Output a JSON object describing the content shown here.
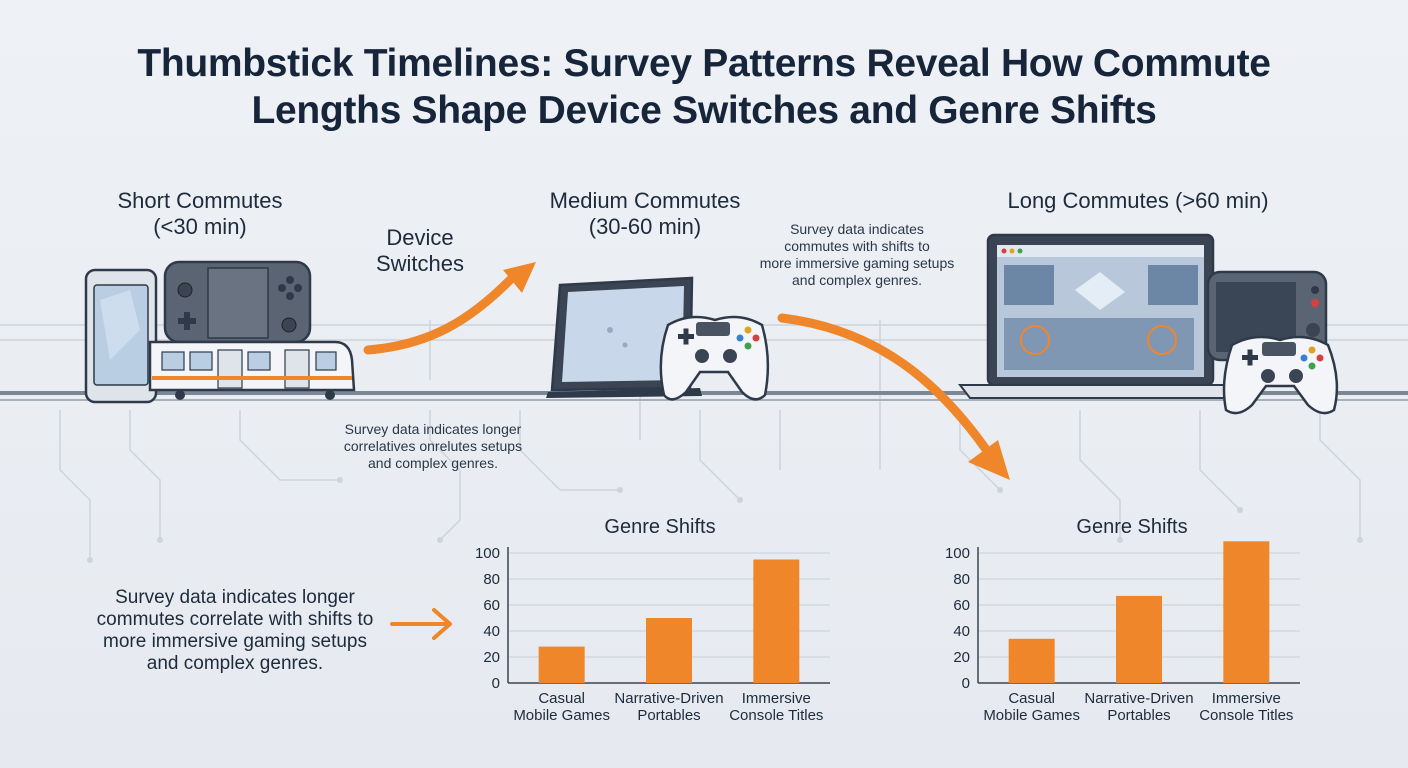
{
  "title_line1": "Thumbstick Timelines: Survey Patterns Reveal How Commute",
  "title_line2": "Lengths Shape Device Switches and Genre Shifts",
  "sections": {
    "short": {
      "line1": "Short Commutes",
      "line2": "(<30 min)"
    },
    "medium": {
      "line1": "Medium Commutes",
      "line2": "(30-60 min)"
    },
    "long": {
      "line1": "Long Commutes (>60 min)"
    }
  },
  "device_switches": {
    "line1": "Device",
    "line2": "Switches"
  },
  "notes": {
    "upper_right": [
      "Survey data indicates",
      "commutes with shifts to",
      "more immersive gaming setups",
      "and complex genres."
    ],
    "middle": [
      "Survey data indicates longer",
      "correlatives onrelutes setups",
      "and complex genres."
    ],
    "left": [
      "Survey data indicates longer",
      "commutes correlate with shifts to",
      "more immersive gaming setups",
      "and complex genres."
    ]
  },
  "colors": {
    "accent": "#f0862a",
    "ink": "#1d2b3c",
    "axis": "#3a4656",
    "grid": "#c9cfd8"
  },
  "icons": [
    "smartphone-icon",
    "handheld-console-icon",
    "commuter-train-icon",
    "tablet-icon",
    "gamepad-icon",
    "laptop-icon",
    "console-screen-icon"
  ],
  "chart_data": [
    {
      "type": "bar",
      "title": "Genre Shifts",
      "categories": [
        [
          "Casual",
          "Mobile Games"
        ],
        [
          "Narrative-Driven",
          "Portables"
        ],
        [
          "Immersive",
          "Console Titles"
        ]
      ],
      "values": [
        28,
        50,
        95
      ],
      "ylim": [
        0,
        100
      ],
      "yticks": [
        0,
        20,
        40,
        60,
        80,
        100
      ],
      "grid": true
    },
    {
      "type": "bar",
      "title": "Genre Shifts",
      "categories": [
        [
          "Casual",
          "Mobile Games"
        ],
        [
          "Narrative-Driven",
          "Portables"
        ],
        [
          "Immersive",
          "Console Titles"
        ]
      ],
      "values": [
        34,
        67,
        109
      ],
      "ylim": [
        0,
        100
      ],
      "yticks": [
        0,
        20,
        40,
        60,
        80,
        100
      ],
      "grid": true
    }
  ]
}
